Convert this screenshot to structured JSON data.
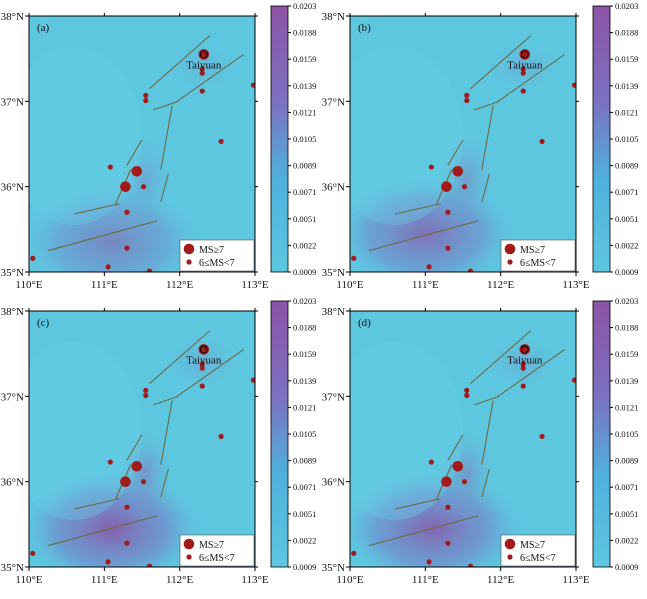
{
  "colors": {
    "low": "#5dc7e0",
    "high": "#8c54a6",
    "fault": "#6b6b45",
    "quake": "#a21a1a",
    "frame": "#000000"
  },
  "colorbar": {
    "ticks": [
      "0.0203",
      "0.0188",
      "0.0159",
      "0.0139",
      "0.0121",
      "0.0105",
      "0.0089",
      "0.0071",
      "0.0051",
      "0.0022",
      "0.0009"
    ]
  },
  "legend": {
    "large_label": "MS≥7",
    "small_label": "6≤MS<7"
  },
  "chart_data": [
    {
      "type": "heatmap",
      "panel_label": "(a)",
      "city_label": "Taiyuan",
      "xlim": [
        110,
        113
      ],
      "ylim": [
        35,
        38
      ],
      "x_ticks": [
        "110°E",
        "111°E",
        "112°E",
        "113°E"
      ],
      "y_ticks": [
        "35°N",
        "36°N",
        "37°N",
        "38°N"
      ],
      "hot_spot": {
        "lon": 111.1,
        "lat": 35.35,
        "strength": 0.55
      }
    },
    {
      "type": "heatmap",
      "panel_label": "(b)",
      "city_label": "Taiyuan",
      "xlim": [
        110,
        113
      ],
      "ylim": [
        35,
        38
      ],
      "x_ticks": [
        "110°E",
        "111°E",
        "112°E",
        "113°E"
      ],
      "y_ticks": [
        "35°N",
        "36°N",
        "37°N",
        "38°N"
      ],
      "hot_spot": {
        "lon": 111.0,
        "lat": 35.45,
        "strength": 0.75
      }
    },
    {
      "type": "heatmap",
      "panel_label": "(c)",
      "city_label": "Taiyuan",
      "xlim": [
        110,
        113
      ],
      "ylim": [
        35,
        38
      ],
      "x_ticks": [
        "110°E",
        "111°E",
        "112°E",
        "113°E"
      ],
      "y_ticks": [
        "35°N",
        "36°N",
        "37°N",
        "38°N"
      ],
      "hot_spot": {
        "lon": 111.1,
        "lat": 35.45,
        "strength": 0.9
      }
    },
    {
      "type": "heatmap",
      "panel_label": "(d)",
      "city_label": "Taiyuan",
      "xlim": [
        110,
        113
      ],
      "ylim": [
        35,
        38
      ],
      "x_ticks": [
        "110°E",
        "111°E",
        "112°E",
        "113°E"
      ],
      "y_ticks": [
        "35°N",
        "36°N",
        "37°N",
        "38°N"
      ],
      "hot_spot": {
        "lon": 111.1,
        "lat": 35.45,
        "strength": 0.85
      }
    }
  ],
  "earthquakes": [
    {
      "lon": 111.43,
      "lat": 36.18,
      "mag_class": "large"
    },
    {
      "lon": 111.28,
      "lat": 36.0,
      "mag_class": "large"
    },
    {
      "lon": 112.32,
      "lat": 37.55,
      "mag_class": "large"
    },
    {
      "lon": 112.3,
      "lat": 37.38,
      "mag_class": "small"
    },
    {
      "lon": 112.3,
      "lat": 37.33,
      "mag_class": "small"
    },
    {
      "lon": 112.3,
      "lat": 37.12,
      "mag_class": "small"
    },
    {
      "lon": 112.98,
      "lat": 37.19,
      "mag_class": "small"
    },
    {
      "lon": 111.55,
      "lat": 37.07,
      "mag_class": "small"
    },
    {
      "lon": 111.55,
      "lat": 37.01,
      "mag_class": "small"
    },
    {
      "lon": 112.55,
      "lat": 36.53,
      "mag_class": "small"
    },
    {
      "lon": 111.08,
      "lat": 36.23,
      "mag_class": "small"
    },
    {
      "lon": 111.52,
      "lat": 36.0,
      "mag_class": "small"
    },
    {
      "lon": 111.3,
      "lat": 35.7,
      "mag_class": "small"
    },
    {
      "lon": 111.3,
      "lat": 35.28,
      "mag_class": "small"
    },
    {
      "lon": 110.05,
      "lat": 35.16,
      "mag_class": "small"
    },
    {
      "lon": 111.05,
      "lat": 35.06,
      "mag_class": "small"
    },
    {
      "lon": 111.6,
      "lat": 35.01,
      "mag_class": "small"
    }
  ],
  "faults": [
    [
      [
        111.6,
        37.15
      ],
      [
        112.4,
        37.77
      ]
    ],
    [
      [
        111.95,
        36.99
      ],
      [
        112.85,
        37.55
      ]
    ],
    [
      [
        111.65,
        36.9
      ],
      [
        111.98,
        37.0
      ]
    ],
    [
      [
        111.9,
        36.95
      ],
      [
        111.75,
        36.2
      ]
    ],
    [
      [
        111.85,
        36.15
      ],
      [
        111.75,
        35.82
      ]
    ],
    [
      [
        111.15,
        35.8
      ],
      [
        111.35,
        36.2
      ]
    ],
    [
      [
        111.3,
        36.25
      ],
      [
        111.5,
        36.55
      ]
    ],
    [
      [
        110.6,
        35.68
      ],
      [
        111.2,
        35.8
      ]
    ],
    [
      [
        110.25,
        35.25
      ],
      [
        111.7,
        35.6
      ]
    ]
  ]
}
